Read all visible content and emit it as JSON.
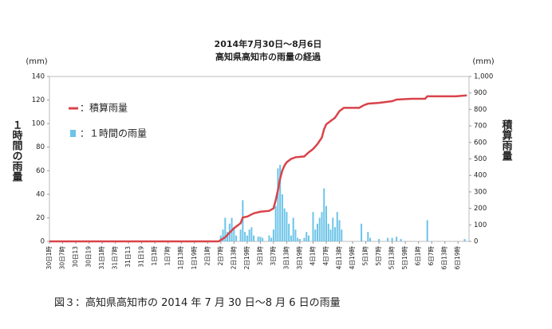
{
  "chart_data": {
    "type": "combo",
    "title": "2014年7月30日～8月6日",
    "subtitle": "高知県高知市の雨量の経過",
    "y_unit": "(mm)",
    "y2_unit": "(mm)",
    "y_label": "１時間の雨量",
    "y2_label": "積算雨量",
    "caption": "図３：高知県高知市の 2014 年 7 月 30 日～8 月 6 日の雨量",
    "xlim": [
      0,
      191
    ],
    "xticks": [
      {
        "value": 0,
        "label": "30日1時"
      },
      {
        "value": 6,
        "label": "30日7時"
      },
      {
        "value": 12,
        "label": "30日13"
      },
      {
        "value": 18,
        "label": "30日19"
      },
      {
        "value": 24,
        "label": "31日1時"
      },
      {
        "value": 30,
        "label": "31日7時"
      },
      {
        "value": 36,
        "label": "31日13"
      },
      {
        "value": 42,
        "label": "31日19"
      },
      {
        "value": 48,
        "label": "1日1時"
      },
      {
        "value": 54,
        "label": "1日7時"
      },
      {
        "value": 60,
        "label": "1日13時"
      },
      {
        "value": 66,
        "label": "1日19時"
      },
      {
        "value": 72,
        "label": "2日1時"
      },
      {
        "value": 78,
        "label": "2日7時"
      },
      {
        "value": 84,
        "label": "2日13時"
      },
      {
        "value": 90,
        "label": "2日19時"
      },
      {
        "value": 96,
        "label": "3日1時"
      },
      {
        "value": 102,
        "label": "3日7時"
      },
      {
        "value": 108,
        "label": "3日13時"
      },
      {
        "value": 114,
        "label": "3日19時"
      },
      {
        "value": 120,
        "label": "4日1時"
      },
      {
        "value": 126,
        "label": "4日7時"
      },
      {
        "value": 132,
        "label": "4日13時"
      },
      {
        "value": 138,
        "label": "4日19時"
      },
      {
        "value": 144,
        "label": "5日1時"
      },
      {
        "value": 150,
        "label": "5日7時"
      },
      {
        "value": 156,
        "label": "5日13時"
      },
      {
        "value": 162,
        "label": "5日19時"
      },
      {
        "value": 168,
        "label": "6日1時"
      },
      {
        "value": 174,
        "label": "6日7時"
      },
      {
        "value": 180,
        "label": "6日13時"
      },
      {
        "value": 186,
        "label": "6日19時"
      }
    ],
    "ylim": [
      0,
      140
    ],
    "yticks": [
      0,
      20,
      40,
      60,
      80,
      100,
      120,
      140
    ],
    "y2lim": [
      0,
      1000
    ],
    "y2ticks": [
      0,
      100,
      200,
      300,
      400,
      500,
      600,
      700,
      800,
      900,
      {
        "value": 1000,
        "label": "1,000"
      }
    ],
    "series": [
      {
        "name": "：積算雨量",
        "type": "line",
        "axis": "y2",
        "color": "#d9434a",
        "x": [
          0,
          77,
          80,
          84,
          87,
          88,
          90,
          93,
          96,
          100,
          102,
          103,
          104,
          105,
          106,
          107,
          108,
          110,
          112,
          116,
          118,
          120,
          122,
          124,
          125,
          126,
          128,
          130,
          132,
          134,
          141,
          143,
          145,
          150,
          156,
          158,
          165,
          171,
          172,
          185,
          190
        ],
        "values": [
          0,
          0,
          25,
          80,
          110,
          145,
          150,
          170,
          180,
          185,
          200,
          250,
          310,
          380,
          430,
          460,
          480,
          500,
          510,
          515,
          540,
          560,
          590,
          630,
          680,
          710,
          730,
          750,
          790,
          810,
          810,
          825,
          835,
          840,
          850,
          860,
          865,
          865,
          880,
          880,
          885
        ]
      },
      {
        "name": "：１時間の雨量",
        "type": "bar",
        "color": "#6cc4e8",
        "x": [
          78,
          79,
          80,
          81,
          82,
          83,
          84,
          85,
          87,
          88,
          89,
          90,
          91,
          92,
          93,
          95,
          96,
          97,
          100,
          101,
          102,
          103,
          104,
          105,
          106,
          107,
          108,
          109,
          110,
          111,
          112,
          113,
          114,
          116,
          117,
          118,
          120,
          121,
          122,
          123,
          124,
          125,
          126,
          127,
          128,
          129,
          130,
          131,
          132,
          133,
          142,
          145,
          146,
          150,
          154,
          156,
          158,
          160,
          172,
          189
        ],
        "values": [
          5,
          10,
          20,
          8,
          15,
          20,
          12,
          5,
          10,
          35,
          8,
          5,
          10,
          12,
          5,
          4,
          4,
          3,
          5,
          3,
          10,
          30,
          62,
          65,
          40,
          28,
          25,
          15,
          5,
          20,
          10,
          3,
          2,
          3,
          8,
          5,
          25,
          10,
          15,
          20,
          25,
          45,
          30,
          15,
          10,
          20,
          12,
          25,
          18,
          10,
          15,
          8,
          3,
          2,
          3,
          3,
          4,
          2,
          18,
          2
        ]
      }
    ]
  }
}
